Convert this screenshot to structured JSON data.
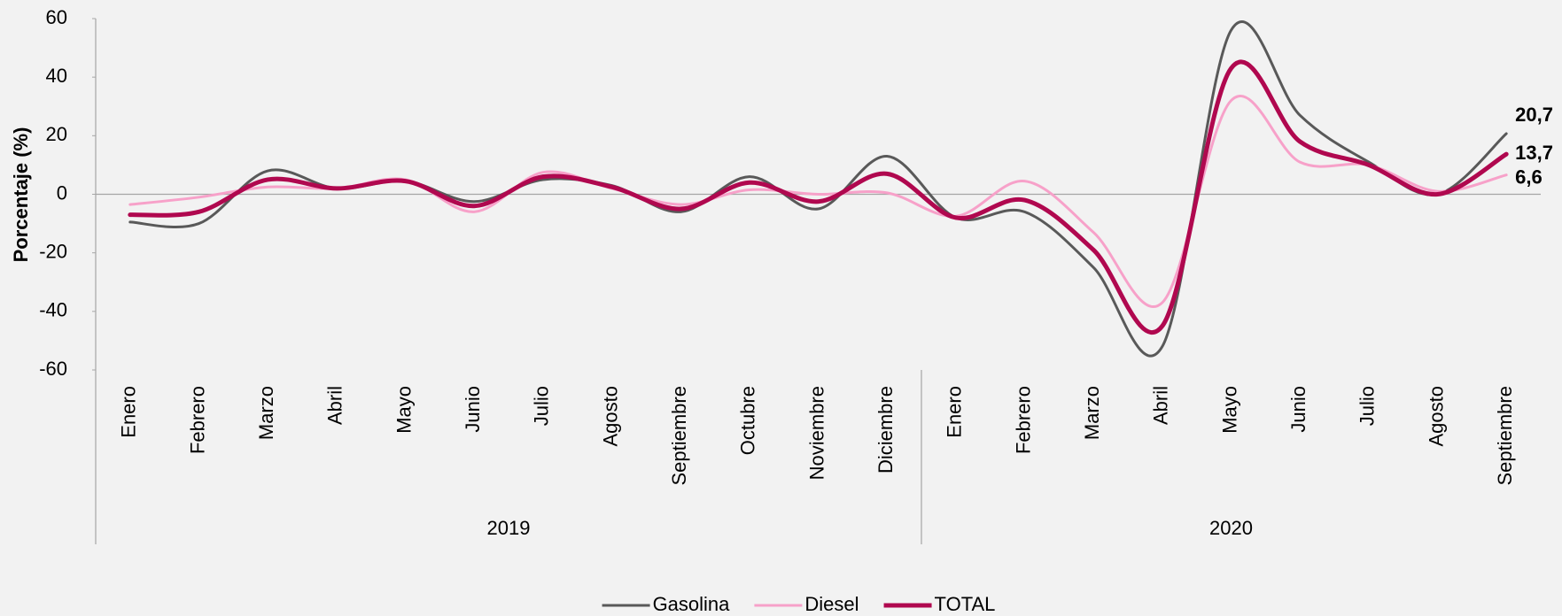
{
  "chart_data": {
    "type": "line",
    "y_label": "Porcentaje (%)",
    "groups": [
      {
        "label": "2019",
        "categories": [
          "Enero",
          "Febrero",
          "Marzo",
          "Abril",
          "Mayo",
          "Junio",
          "Julio",
          "Agosto",
          "Septiembre",
          "Octubre",
          "Noviembre",
          "Diciembre"
        ]
      },
      {
        "label": "2020",
        "categories": [
          "Enero",
          "Febrero",
          "Marzo",
          "Abril",
          "Mayo",
          "Junio",
          "Julio",
          "Agosto",
          "Septiembre"
        ]
      }
    ],
    "series": [
      {
        "name": "Gasolina",
        "color": "#595959",
        "width": 3,
        "values": [
          -9.5,
          -10,
          8,
          2,
          4.5,
          -2.5,
          5,
          3,
          -6,
          6,
          -5,
          13,
          -8,
          -6,
          -25,
          -52,
          56,
          27,
          11,
          0,
          20.7
        ],
        "value_labels": [
          null,
          null,
          null,
          null,
          null,
          null,
          null,
          null,
          null,
          null,
          null,
          null,
          null,
          null,
          null,
          null,
          null,
          null,
          null,
          null,
          "20,7"
        ]
      },
      {
        "name": "Diesel",
        "color": "#f7a1c9",
        "width": 3,
        "values": [
          -3.5,
          -1,
          2.5,
          2,
          5,
          -6,
          7.5,
          2,
          -3.5,
          1.5,
          0,
          0.5,
          -7.5,
          4.5,
          -13,
          -37,
          32,
          11,
          10,
          1,
          6.6
        ],
        "value_labels": [
          null,
          null,
          null,
          null,
          null,
          null,
          null,
          null,
          null,
          null,
          null,
          null,
          null,
          null,
          null,
          null,
          null,
          null,
          null,
          null,
          "6,6"
        ]
      },
      {
        "name": "TOTAL",
        "color": "#b0084f",
        "width": 5,
        "values": [
          -7,
          -6,
          5,
          2,
          4.5,
          -4,
          6,
          2.5,
          -5,
          4,
          -2.5,
          7,
          -8,
          -2,
          -19,
          -45,
          43,
          18,
          10,
          0,
          13.7
        ],
        "value_labels": [
          null,
          null,
          null,
          null,
          null,
          null,
          null,
          null,
          null,
          null,
          null,
          null,
          null,
          null,
          null,
          null,
          null,
          null,
          null,
          null,
          "13,7"
        ]
      }
    ],
    "ylim": [
      -60,
      60
    ],
    "yticks": [
      -60,
      -40,
      -20,
      0,
      20,
      40,
      60
    ],
    "legend": "bottom"
  }
}
